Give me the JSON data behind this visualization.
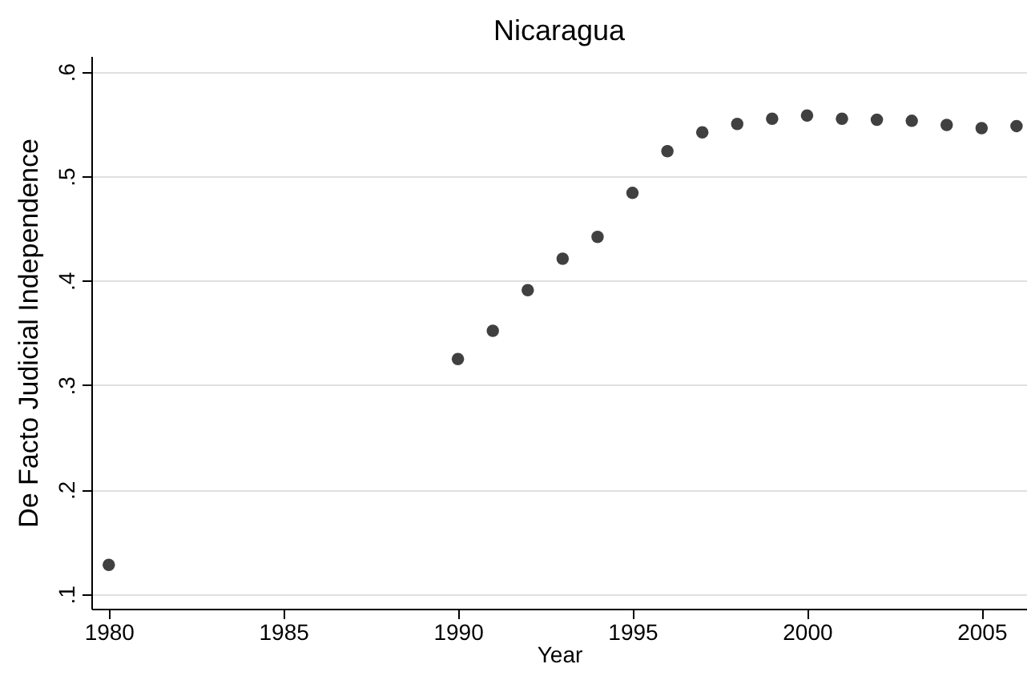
{
  "chart_data": {
    "type": "scatter",
    "title": "Nicaragua",
    "xlabel": "Year",
    "ylabel": "De Facto Judicial Independence",
    "x": [
      1980,
      1990,
      1991,
      1992,
      1993,
      1994,
      1995,
      1996,
      1997,
      1998,
      1999,
      2000,
      2001,
      2002,
      2003,
      2004,
      2005,
      2006
    ],
    "series": [
      {
        "color": "#404040",
        "values": [
          0.128,
          0.325,
          0.352,
          0.391,
          0.421,
          0.442,
          0.484,
          0.524,
          0.542,
          0.55,
          0.555,
          0.558,
          0.555,
          0.554,
          0.553,
          0.549,
          0.546,
          0.548
        ]
      }
    ],
    "xlim": [
      1979.5,
      2006.3
    ],
    "xticks": [
      1980,
      1985,
      1990,
      1995,
      2000,
      2005
    ],
    "ylim": [
      0.086,
      0.615
    ],
    "yticks": [
      {
        "value": 0.1,
        "label": ".1"
      },
      {
        "value": 0.2,
        "label": ".2"
      },
      {
        "value": 0.3,
        "label": ".3"
      },
      {
        "value": 0.4,
        "label": ".4"
      },
      {
        "value": 0.5,
        "label": ".5"
      },
      {
        "value": 0.6,
        "label": ".6"
      }
    ],
    "grid": "y",
    "marker": "circle"
  }
}
